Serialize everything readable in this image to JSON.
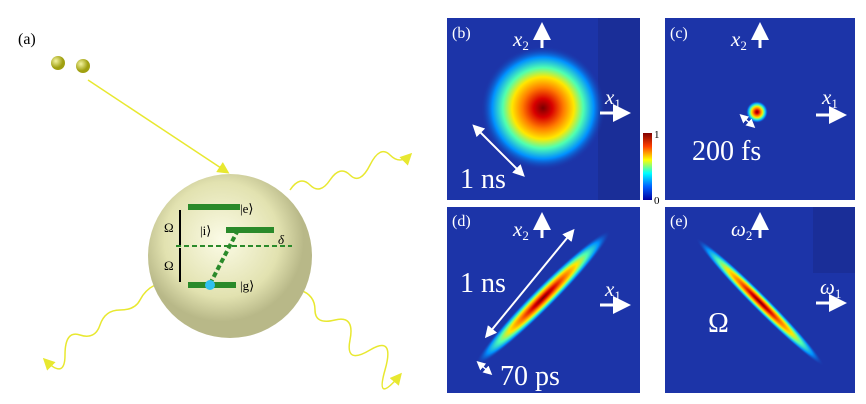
{
  "panel_a": {
    "label": "(a)",
    "levels": {
      "e": "|e⟩",
      "i": "|i⟩",
      "g": "|g⟩",
      "omega_top": "Ω",
      "omega_bottom": "Ω",
      "delta": "δ"
    }
  },
  "panels": [
    {
      "label": "(b)",
      "x_axis": {
        "symbol": "x",
        "sub": "1"
      },
      "y_axis": {
        "symbol": "x",
        "sub": "2"
      },
      "scale": "1 ns"
    },
    {
      "label": "(c)",
      "x_axis": {
        "symbol": "x",
        "sub": "1"
      },
      "y_axis": {
        "symbol": "x",
        "sub": "2"
      },
      "scale": "200 fs"
    },
    {
      "label": "(d)",
      "x_axis": {
        "symbol": "x",
        "sub": "1"
      },
      "y_axis": {
        "symbol": "x",
        "sub": "2"
      },
      "scale": "1 ns",
      "scale2": "70 ps"
    },
    {
      "label": "(e)",
      "x_axis": {
        "symbol": "ω",
        "sub": "1"
      },
      "y_axis": {
        "symbol": "ω",
        "sub": "2"
      },
      "scale": "Ω"
    }
  ],
  "colorbar": {
    "max": "1",
    "min": "0"
  }
}
